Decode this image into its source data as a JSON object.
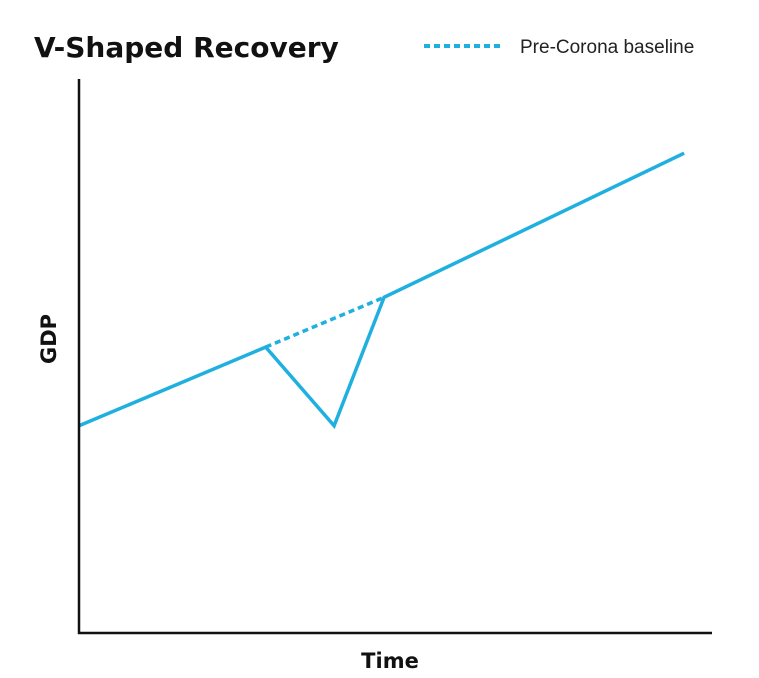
{
  "chart_data": {
    "type": "line",
    "title": "V-Shaped Recovery",
    "xlabel": "Time",
    "ylabel": "GDP",
    "xlim": [
      0,
      100
    ],
    "ylim": [
      0,
      100
    ],
    "grid": false,
    "legend_placement": "top-right",
    "colors": {
      "line": "#1fb0e0",
      "axis": "#111111"
    },
    "series": [
      {
        "style": "solid",
        "x": [
          0,
          29.5,
          40.3,
          48.2,
          95.6
        ],
        "y": [
          37.4,
          51.6,
          37.4,
          60.6,
          86.6
        ]
      },
      {
        "name": "Pre-Corona baseline",
        "style": "dashed",
        "x": [
          29.5,
          48.2
        ],
        "y": [
          51.6,
          60.6
        ]
      }
    ]
  }
}
